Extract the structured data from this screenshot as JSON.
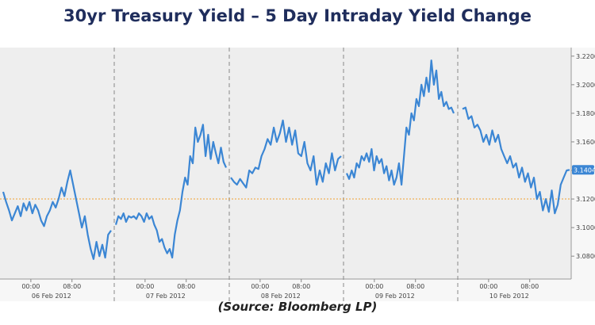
{
  "chart_data": {
    "type": "line",
    "title": "30yr Treasury Yield – 5 Day Intraday Yield Change",
    "source": "(Source: Bloomberg LP)",
    "ylim": [
      3.064,
      3.226
    ],
    "y_ticks": [
      "3.2200",
      "3.2000",
      "3.1800",
      "3.1600",
      "3.1400",
      "3.1200",
      "3.1000",
      "3.0800"
    ],
    "reference_line": 3.12,
    "last_value_label": "3.1404",
    "grid": false,
    "colors": {
      "line": "#3b86d4",
      "reference": "#f0a030",
      "title": "#1f2d5c"
    },
    "x_tick_hours": [
      "00:00",
      "08:00",
      "00:00",
      "08:00",
      "00:00",
      "08:00",
      "00:00",
      "08:00",
      "00:00",
      "08:00"
    ],
    "days": [
      "06 Feb 2012",
      "07 Feb 2012",
      "08 Feb 2012",
      "09 Feb 2012",
      "10 Feb 2012"
    ],
    "series": [
      {
        "values": [
          [
            3.125,
            3.118,
            3.112,
            3.105,
            3.11,
            3.115,
            3.108,
            3.117,
            3.112,
            3.118,
            3.11,
            3.116,
            3.112,
            3.105,
            3.101,
            3.108,
            3.112,
            3.118,
            3.114,
            3.12,
            3.128,
            3.122,
            3.132,
            3.14,
            3.13,
            3.12,
            3.11,
            3.1,
            3.108,
            3.095,
            3.085,
            3.078,
            3.09,
            3.08,
            3.088,
            3.079,
            3.095,
            3.098
          ],
          [
            3.102,
            3.108,
            3.106,
            3.11,
            3.104,
            3.108,
            3.107,
            3.108,
            3.106,
            3.11,
            3.108,
            3.104,
            3.11,
            3.106,
            3.108,
            3.102,
            3.098,
            3.09,
            3.092,
            3.086,
            3.082,
            3.085,
            3.079,
            3.095,
            3.105,
            3.112,
            3.125,
            3.135,
            3.13,
            3.15,
            3.145,
            3.17,
            3.16,
            3.165,
            3.172,
            3.15,
            3.165,
            3.148,
            3.16,
            3.152,
            3.145,
            3.156,
            3.146,
            3.142
          ],
          [
            3.135,
            3.132,
            3.13,
            3.134,
            3.131,
            3.128,
            3.14,
            3.138,
            3.142,
            3.141,
            3.15,
            3.155,
            3.162,
            3.158,
            3.17,
            3.16,
            3.166,
            3.175,
            3.16,
            3.17,
            3.158,
            3.168,
            3.152,
            3.15,
            3.16,
            3.145,
            3.14,
            3.15,
            3.13,
            3.14,
            3.132,
            3.145,
            3.138,
            3.152,
            3.14,
            3.148,
            3.15
          ],
          [
            3.138,
            3.134,
            3.14,
            3.135,
            3.145,
            3.142,
            3.15,
            3.147,
            3.152,
            3.146,
            3.155,
            3.14,
            3.15,
            3.145,
            3.148,
            3.138,
            3.143,
            3.133,
            3.14,
            3.13,
            3.135,
            3.145,
            3.13,
            3.15,
            3.17,
            3.165,
            3.18,
            3.175,
            3.19,
            3.185,
            3.2,
            3.192,
            3.205,
            3.195,
            3.217,
            3.2,
            3.21,
            3.19,
            3.195,
            3.185,
            3.188,
            3.183,
            3.184,
            3.18
          ],
          [
            3.183,
            3.184,
            3.176,
            3.178,
            3.17,
            3.172,
            3.168,
            3.16,
            3.165,
            3.158,
            3.168,
            3.16,
            3.165,
            3.155,
            3.15,
            3.145,
            3.15,
            3.142,
            3.145,
            3.135,
            3.142,
            3.132,
            3.138,
            3.128,
            3.135,
            3.12,
            3.125,
            3.112,
            3.12,
            3.111,
            3.126,
            3.11,
            3.116,
            3.13,
            3.135,
            3.14,
            3.1404
          ]
        ]
      }
    ]
  }
}
